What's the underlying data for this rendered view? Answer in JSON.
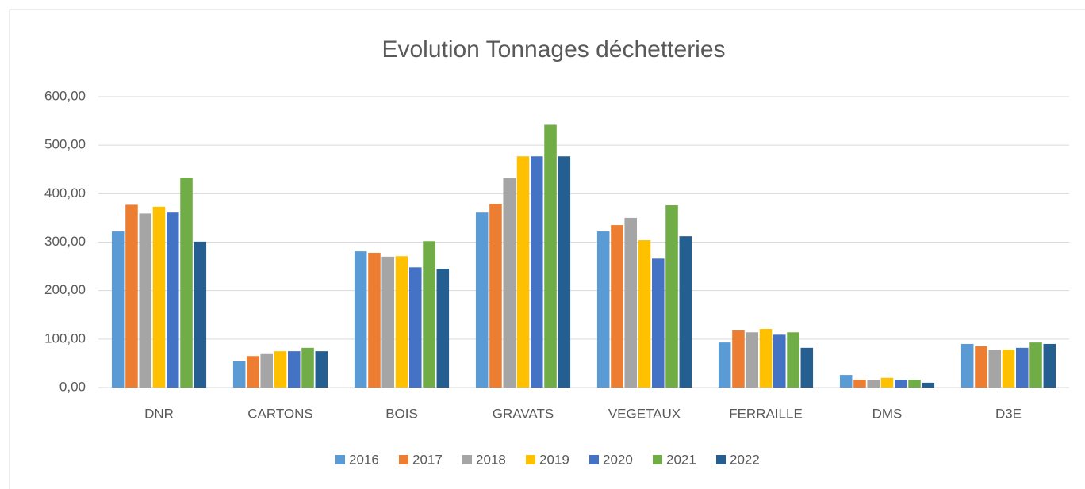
{
  "chart_data": {
    "type": "bar",
    "title": "Evolution Tonnages déchetteries",
    "categories": [
      "DNR",
      "CARTONS",
      "BOIS",
      "GRAVATS",
      "VEGETAUX",
      "FERRAILLE",
      "DMS",
      "D3E"
    ],
    "series": [
      {
        "name": "2016",
        "color": "#5b9bd5",
        "values": [
          322,
          54,
          281,
          361,
          322,
          93,
          26,
          90
        ]
      },
      {
        "name": "2017",
        "color": "#ed7d31",
        "values": [
          377,
          65,
          278,
          379,
          335,
          118,
          16,
          85
        ]
      },
      {
        "name": "2018",
        "color": "#a5a5a5",
        "values": [
          359,
          69,
          270,
          433,
          350,
          114,
          15,
          78
        ]
      },
      {
        "name": "2019",
        "color": "#ffc000",
        "values": [
          373,
          75,
          271,
          477,
          304,
          121,
          20,
          78
        ]
      },
      {
        "name": "2020",
        "color": "#4472c4",
        "values": [
          361,
          75,
          248,
          477,
          266,
          109,
          16,
          82
        ]
      },
      {
        "name": "2021",
        "color": "#70ad47",
        "values": [
          433,
          82,
          302,
          542,
          376,
          114,
          16,
          93
        ]
      },
      {
        "name": "2022",
        "color": "#255e91",
        "values": [
          301,
          75,
          245,
          477,
          312,
          82,
          10,
          90
        ]
      }
    ],
    "ylim": [
      0,
      600
    ],
    "yticks": [
      {
        "value": 0,
        "label": "0,00"
      },
      {
        "value": 100,
        "label": "100,00"
      },
      {
        "value": 200,
        "label": "200,00"
      },
      {
        "value": 300,
        "label": "300,00"
      },
      {
        "value": 400,
        "label": "400,00"
      },
      {
        "value": 500,
        "label": "500,00"
      },
      {
        "value": 600,
        "label": "600,00"
      }
    ],
    "grid": true,
    "legend": "bottom"
  }
}
